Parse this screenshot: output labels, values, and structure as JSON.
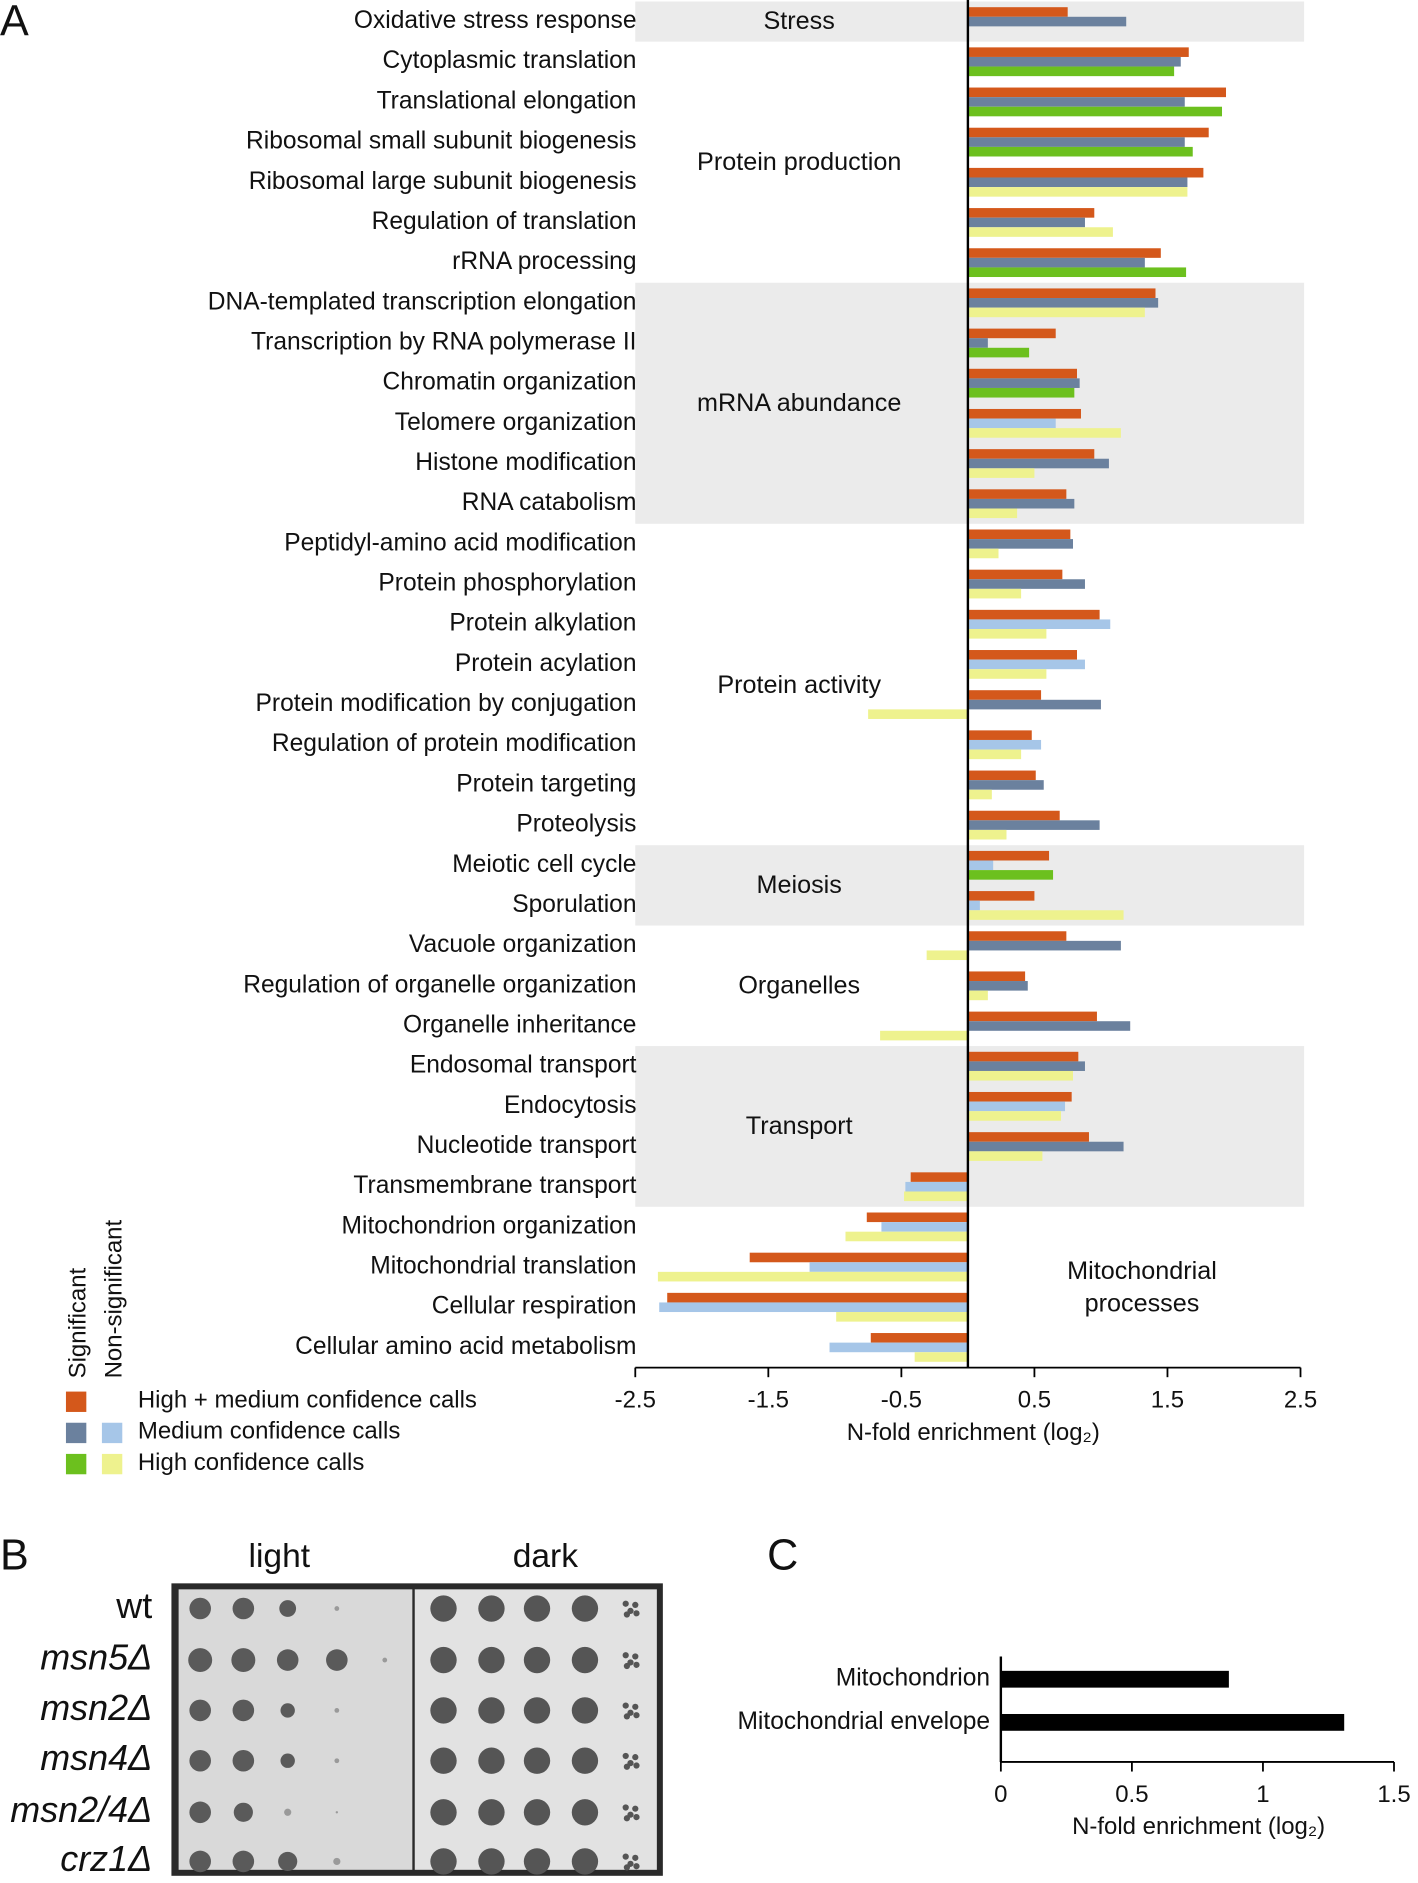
{
  "chart_data": [
    {
      "type": "bar",
      "orientation": "horizontal",
      "panel_label": "A",
      "groups": [
        {
          "label": "Stress",
          "shaded": true,
          "categories": [
            "Oxidative stress response"
          ]
        },
        {
          "label": "Protein production",
          "shaded": false,
          "categories": [
            "Cytoplasmic translation",
            "Translational elongation",
            "Ribosomal small subunit biogenesis",
            "Ribosomal large subunit biogenesis",
            "Regulation of translation",
            "rRNA processing"
          ]
        },
        {
          "label": "mRNA abundance",
          "shaded": true,
          "categories": [
            "DNA-templated transcription elongation",
            "Transcription by RNA polymerase II",
            "Chromatin organization",
            "Telomere organization",
            "Histone modification",
            "RNA catabolism"
          ]
        },
        {
          "label": "Protein activity",
          "shaded": false,
          "categories": [
            "Peptidyl-amino acid modification",
            "Protein phosphorylation",
            "Protein alkylation",
            "Protein acylation",
            "Protein modification by conjugation",
            "Regulation of protein modification",
            "Protein targeting",
            "Proteolysis"
          ]
        },
        {
          "label": "Meiosis",
          "shaded": true,
          "categories": [
            "Meiotic cell cycle",
            "Sporulation"
          ]
        },
        {
          "label": "Organelles",
          "shaded": false,
          "categories": [
            "Vacuole organization",
            "Regulation of organelle organization",
            "Organelle inheritance"
          ]
        },
        {
          "label": "Transport",
          "shaded": true,
          "categories": [
            "Endosomal transport",
            "Endocytosis",
            "Nucleotide transport",
            "Transmembrane transport"
          ]
        },
        {
          "label": "Mitochondrial processes",
          "shaded": false,
          "categories": [
            "Mitochondrion organization",
            "Mitochondrial translation",
            "Cellular respiration",
            "Cellular amino acid metabolism"
          ]
        }
      ],
      "series": [
        {
          "name": "High + medium confidence calls",
          "color": "#d4581b",
          "values": [
            0.75,
            1.66,
            1.94,
            1.81,
            1.77,
            0.95,
            1.45,
            1.41,
            0.66,
            0.82,
            0.85,
            0.95,
            0.74,
            0.77,
            0.71,
            0.99,
            0.82,
            0.55,
            0.48,
            0.51,
            0.69,
            0.61,
            0.5,
            0.74,
            0.43,
            0.97,
            0.83,
            0.78,
            0.91,
            -0.43,
            -0.76,
            -1.64,
            -2.26,
            -0.73
          ],
          "significant": [
            true,
            true,
            true,
            true,
            true,
            true,
            true,
            true,
            true,
            true,
            true,
            true,
            true,
            true,
            true,
            true,
            true,
            true,
            true,
            true,
            true,
            true,
            true,
            true,
            true,
            true,
            true,
            true,
            true,
            true,
            true,
            true,
            true,
            true
          ]
        },
        {
          "name": "Medium confidence calls",
          "color": "#6b819e",
          "nonsignificant_color": "#a6c6e8",
          "values": [
            1.19,
            1.6,
            1.63,
            1.63,
            1.65,
            0.88,
            1.33,
            1.43,
            0.15,
            0.84,
            0.66,
            1.06,
            0.8,
            0.79,
            0.88,
            1.07,
            0.88,
            1.0,
            0.55,
            0.57,
            0.99,
            0.19,
            0.09,
            1.15,
            0.45,
            1.22,
            0.88,
            0.73,
            1.17,
            -0.47,
            -0.65,
            -1.19,
            -2.32,
            -1.04
          ],
          "significant": [
            true,
            true,
            true,
            true,
            true,
            true,
            true,
            true,
            true,
            true,
            false,
            true,
            true,
            true,
            true,
            false,
            false,
            true,
            false,
            true,
            true,
            false,
            false,
            true,
            true,
            true,
            true,
            false,
            true,
            false,
            false,
            false,
            false,
            false
          ]
        },
        {
          "name": "High confidence calls",
          "color": "#6cc01e",
          "nonsignificant_color": "#eef28e",
          "values": [
            null,
            1.55,
            1.91,
            1.69,
            1.65,
            1.09,
            1.64,
            1.33,
            0.46,
            0.8,
            1.15,
            0.5,
            0.37,
            0.23,
            0.4,
            0.59,
            0.59,
            -0.75,
            0.4,
            0.18,
            0.29,
            0.64,
            1.17,
            -0.31,
            0.15,
            -0.66,
            0.79,
            0.7,
            0.56,
            -0.48,
            -0.92,
            -2.33,
            -0.99,
            -0.4
          ],
          "significant": [
            false,
            true,
            true,
            true,
            false,
            false,
            true,
            false,
            true,
            true,
            false,
            false,
            false,
            false,
            false,
            false,
            false,
            false,
            false,
            false,
            false,
            true,
            false,
            false,
            false,
            false,
            false,
            false,
            false,
            false,
            false,
            false,
            false,
            false
          ]
        }
      ],
      "legend_headers": [
        "Significant",
        "Non-significant"
      ],
      "xlim": [
        -2.5,
        2.5
      ],
      "xticks": [
        -2.5,
        -1.5,
        -0.5,
        0.5,
        1.5,
        2.5
      ],
      "xlabel": "N-fold enrichment (log₂)"
    },
    {
      "type": "bar",
      "orientation": "horizontal",
      "panel_label": "C",
      "categories": [
        "Mitochondrion",
        "Mitochondrial envelope"
      ],
      "values": [
        0.87,
        1.31
      ],
      "color": "#000000",
      "xlim": [
        0,
        1.5
      ],
      "xticks": [
        0,
        0.5,
        1,
        1.5
      ],
      "xlabel": "N-fold enrichment (log₂)"
    }
  ],
  "plate_assay": {
    "panel_label": "B",
    "conditions": [
      "light",
      "dark"
    ],
    "strains": [
      {
        "name": "wt",
        "italic": false
      },
      {
        "name": "msn5Δ",
        "italic": true
      },
      {
        "name": "msn2Δ",
        "italic": true
      },
      {
        "name": "msn4Δ",
        "italic": true
      },
      {
        "name": "msn2/4Δ",
        "italic": true
      },
      {
        "name": "crz1Δ",
        "italic": true
      }
    ]
  }
}
